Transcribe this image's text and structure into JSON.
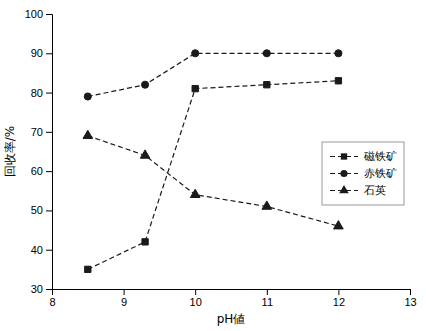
{
  "chart_data": {
    "type": "line",
    "xlabel": "pH値",
    "ylabel": "回收率/%",
    "x": [
      8.5,
      9.3,
      10,
      11,
      12
    ],
    "series": [
      {
        "name": "磁铁矿",
        "color": "#1a1a1a",
        "marker": "square",
        "line_style": "dashed",
        "values": [
          35,
          42,
          81,
          82,
          83
        ]
      },
      {
        "name": "赤铁矿",
        "color": "#1a1a1a",
        "marker": "circle",
        "line_style": "dashed",
        "values": [
          79,
          82,
          90,
          90,
          90
        ]
      },
      {
        "name": "石英",
        "color": "#1a1a1a",
        "marker": "triangle",
        "line_style": "dashed",
        "values": [
          69,
          64,
          54,
          51,
          46
        ]
      }
    ],
    "xlim": [
      8,
      13
    ],
    "ylim": [
      30,
      100
    ],
    "xticks": [
      8,
      9,
      10,
      11,
      12,
      13
    ],
    "yticks": [
      30,
      40,
      50,
      60,
      70,
      80,
      90,
      100
    ],
    "grid": false,
    "legend": "right"
  }
}
